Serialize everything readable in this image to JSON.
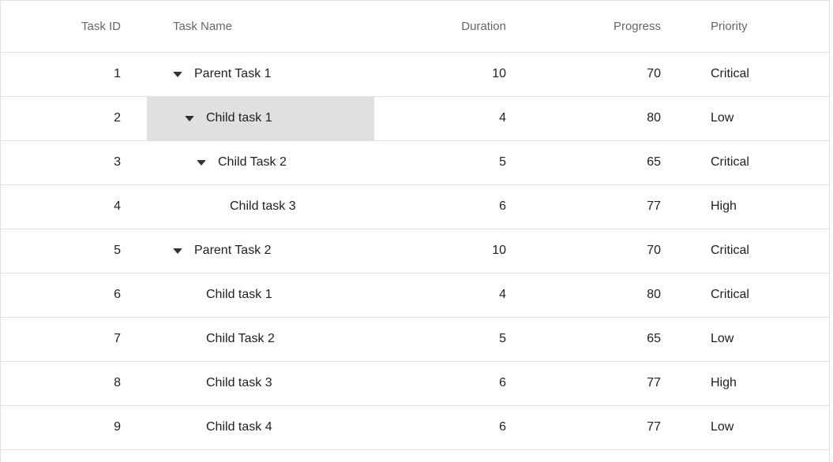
{
  "grid": {
    "columns": [
      {
        "label": "Task ID"
      },
      {
        "label": "Task Name"
      },
      {
        "label": "Duration"
      },
      {
        "label": "Progress"
      },
      {
        "label": "Priority"
      }
    ],
    "rows": [
      {
        "id": "1",
        "name": "Parent Task 1",
        "level": 0,
        "has_expander": true,
        "expanded": true,
        "duration": "10",
        "progress": "70",
        "priority": "Critical"
      },
      {
        "id": "2",
        "name": "Child task 1",
        "level": 1,
        "has_expander": true,
        "expanded": true,
        "duration": "4",
        "progress": "80",
        "priority": "Low"
      },
      {
        "id": "3",
        "name": "Child Task 2",
        "level": 2,
        "has_expander": true,
        "expanded": true,
        "duration": "5",
        "progress": "65",
        "priority": "Critical"
      },
      {
        "id": "4",
        "name": "Child task 3",
        "level": 3,
        "has_expander": false,
        "expanded": false,
        "duration": "6",
        "progress": "77",
        "priority": "High"
      },
      {
        "id": "5",
        "name": "Parent Task 2",
        "level": 0,
        "has_expander": true,
        "expanded": true,
        "duration": "10",
        "progress": "70",
        "priority": "Critical"
      },
      {
        "id": "6",
        "name": "Child task 1",
        "level": 1,
        "has_expander": false,
        "expanded": false,
        "duration": "4",
        "progress": "80",
        "priority": "Critical"
      },
      {
        "id": "7",
        "name": "Child Task 2",
        "level": 1,
        "has_expander": false,
        "expanded": false,
        "duration": "5",
        "progress": "65",
        "priority": "Low"
      },
      {
        "id": "8",
        "name": "Child task 3",
        "level": 1,
        "has_expander": false,
        "expanded": false,
        "duration": "6",
        "progress": "77",
        "priority": "High"
      },
      {
        "id": "9",
        "name": "Child task 4",
        "level": 1,
        "has_expander": false,
        "expanded": false,
        "duration": "6",
        "progress": "77",
        "priority": "Low"
      }
    ],
    "selected_cell": {
      "row_id": "2",
      "column": "Task Name"
    },
    "icons": {
      "expander": "caret-down-icon"
    },
    "colors": {
      "border": "#e0e0e0",
      "header_text": "#666666",
      "body_text": "#212121",
      "selected_cell_bg": "#e0e0e0",
      "row_bg": "#ffffff"
    }
  }
}
